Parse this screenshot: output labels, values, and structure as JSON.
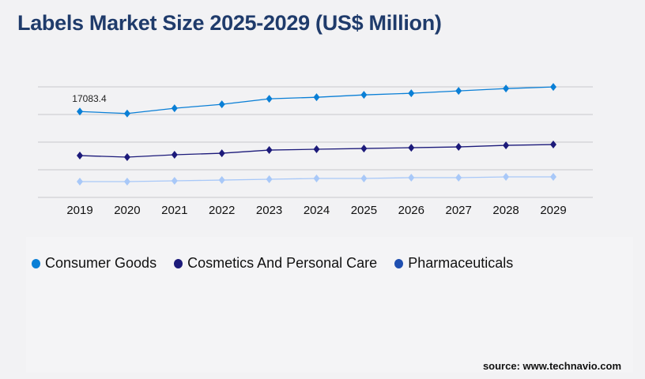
{
  "title": "Labels Market Size 2025-2029 (US$ Million)",
  "source": "source: www.technavio.com",
  "chart_data": {
    "type": "line",
    "title": "Labels Market Size 2025-2029 (US$ Million)",
    "x": [
      "2019",
      "2020",
      "2021",
      "2022",
      "2023",
      "2024",
      "2025",
      "2026",
      "2027",
      "2028",
      "2029"
    ],
    "ylim": [
      0,
      22000
    ],
    "grid": true,
    "legend_placement": "bottom",
    "annotation": "17083.4",
    "series": [
      {
        "name": "Consumer Goods",
        "color": "#0a7fd6",
        "legend_color": "#0a7fd6",
        "values": [
          17083.4,
          16700,
          17740,
          18520,
          19620,
          19930,
          20400,
          20720,
          21190,
          21660,
          21980
        ]
      },
      {
        "name": "Cosmetics And Personal Care",
        "color": "#1c1a7a",
        "legend_color": "#1c1a7a",
        "values": [
          8320,
          8010,
          8480,
          8790,
          9420,
          9580,
          9730,
          9890,
          10050,
          10360,
          10520
        ]
      },
      {
        "name": "Pharmaceuticals",
        "color": "#a8c8f8",
        "legend_color": "#1f4fb0",
        "values": [
          3140,
          3140,
          3300,
          3450,
          3610,
          3770,
          3770,
          3930,
          3930,
          4080,
          4080
        ]
      }
    ]
  }
}
